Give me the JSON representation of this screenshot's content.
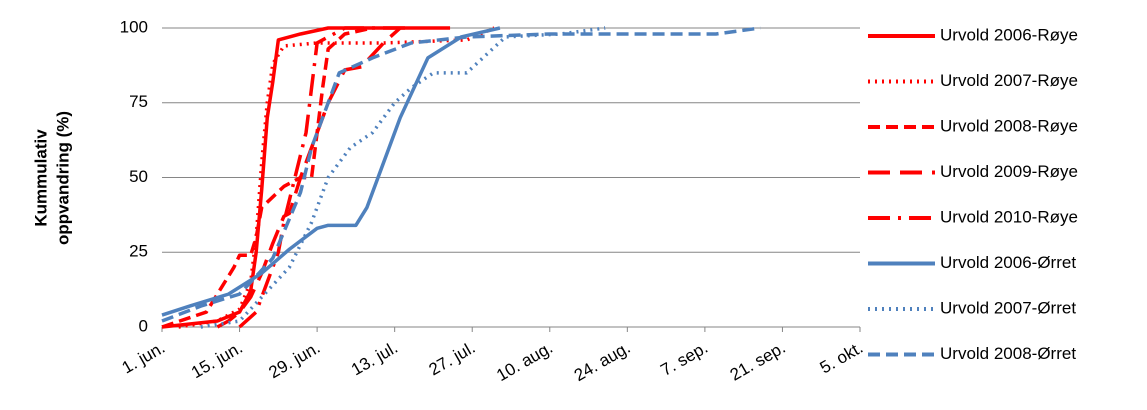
{
  "chart_data": {
    "type": "line",
    "y_label_lines": [
      "Kummulativ",
      "oppvandring (%)"
    ],
    "xlim": [
      0,
      126
    ],
    "xticks": [
      {
        "value": 0,
        "label": "1. jun."
      },
      {
        "value": 14,
        "label": "15. jun."
      },
      {
        "value": 28,
        "label": "29. jun."
      },
      {
        "value": 42,
        "label": "13. jul."
      },
      {
        "value": 56,
        "label": "27. jul."
      },
      {
        "value": 70,
        "label": "10. aug."
      },
      {
        "value": 84,
        "label": "24. aug."
      },
      {
        "value": 98,
        "label": "7. sep."
      },
      {
        "value": 112,
        "label": "21. sep."
      },
      {
        "value": 126,
        "label": "5. okt."
      }
    ],
    "ylim": [
      0,
      100
    ],
    "yticks": [
      0,
      25,
      50,
      75,
      100
    ],
    "grid": true,
    "legend": "right",
    "series": [
      {
        "name": "Urvold 2006-Røye",
        "color": "#ff0000",
        "dash": "solid",
        "x": [
          0,
          10,
          14,
          16,
          17,
          18,
          19,
          20,
          21,
          25,
          30,
          40,
          52
        ],
        "values": [
          0,
          2,
          5,
          12,
          25,
          46,
          70,
          82,
          96,
          98,
          100,
          100,
          100
        ]
      },
      {
        "name": "Urvold 2007-Røye",
        "color": "#ff0000",
        "dash": "dot",
        "x": [
          3,
          10,
          14,
          16,
          17,
          18,
          19,
          20,
          22,
          28,
          40,
          55,
          60
        ],
        "values": [
          0,
          2,
          6,
          15,
          30,
          55,
          75,
          88,
          94,
          95,
          95,
          96,
          100
        ]
      },
      {
        "name": "Urvold 2008-Røye",
        "color": "#ff0000",
        "dash": "dash",
        "x": [
          0,
          8,
          13,
          14,
          15,
          16,
          17,
          18,
          22,
          25,
          27,
          29,
          30,
          33,
          38
        ],
        "values": [
          0,
          5,
          20,
          24,
          24,
          24,
          30,
          40,
          47,
          50,
          50,
          80,
          93,
          98,
          100
        ]
      },
      {
        "name": "Urvold 2009-Røye",
        "color": "#ff0000",
        "dash": "longdash",
        "x": [
          10,
          12,
          14,
          16,
          18,
          20,
          22,
          23,
          25,
          27,
          30,
          33,
          36,
          40,
          43
        ],
        "values": [
          0,
          2,
          5,
          10,
          18,
          28,
          37,
          38,
          50,
          60,
          75,
          86,
          87,
          95,
          100
        ]
      },
      {
        "name": "Urvold 2010-Røye",
        "color": "#ff0000",
        "dash": "dashdot",
        "x": [
          14,
          17,
          19,
          21,
          22,
          24,
          26,
          27,
          28,
          30,
          33,
          45
        ],
        "values": [
          0,
          5,
          15,
          25,
          35,
          50,
          65,
          80,
          95,
          97,
          100,
          100
        ]
      },
      {
        "name": "Urvold 2006-Ørret",
        "color": "#4f81bd",
        "dash": "solid",
        "x": [
          0,
          5,
          12,
          18,
          23,
          28,
          30,
          35,
          37,
          39,
          43,
          48,
          54,
          61
        ],
        "values": [
          4,
          7,
          11,
          18,
          26,
          33,
          34,
          34,
          40,
          50,
          70,
          90,
          97,
          100
        ]
      },
      {
        "name": "Urvold 2007-Ørret",
        "color": "#4f81bd",
        "dash": "dot",
        "x": [
          7,
          14,
          18,
          23,
          27,
          30,
          34,
          38,
          42,
          45,
          49,
          55,
          62,
          72,
          80
        ],
        "values": [
          0,
          2,
          10,
          20,
          35,
          50,
          60,
          65,
          75,
          80,
          85,
          85,
          97,
          98,
          100
        ]
      },
      {
        "name": "Urvold 2008-Ørret",
        "color": "#4f81bd",
        "dash": "dash",
        "x": [
          0,
          7,
          14,
          20,
          25,
          27,
          30,
          32,
          38,
          45,
          55,
          70,
          100,
          108
        ],
        "values": [
          2,
          7,
          11,
          23,
          45,
          60,
          75,
          85,
          90,
          95,
          97,
          98,
          98,
          100
        ]
      }
    ]
  }
}
